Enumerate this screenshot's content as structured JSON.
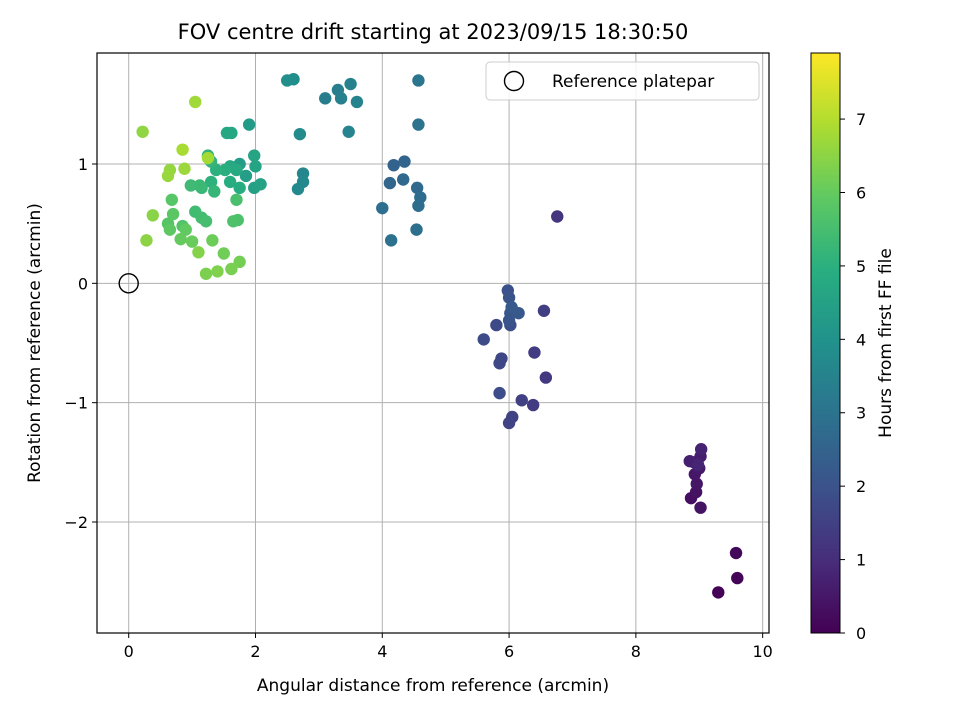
{
  "chart_data": {
    "type": "scatter",
    "title": "FOV centre drift starting at 2023/09/15 18:30:50",
    "xlabel": "Angular distance from reference (arcmin)",
    "ylabel": "Rotation from reference (arcmin)",
    "xlim": [
      -0.5,
      10.1
    ],
    "ylim": [
      -2.93,
      1.93
    ],
    "xticks": [
      0,
      2,
      4,
      6,
      8,
      10
    ],
    "yticks": [
      -2,
      -1,
      0,
      1
    ],
    "grid": true,
    "legend": {
      "placement": "top-right",
      "entries": [
        "Reference platepar"
      ]
    },
    "reference_point": {
      "label": "Reference platepar",
      "x": 0,
      "y": 0
    },
    "colorbar": {
      "label": "Hours from first FF file",
      "range": [
        0,
        7.9
      ],
      "ticks": [
        0,
        1,
        2,
        3,
        4,
        5,
        6,
        7
      ],
      "colormap": "viridis"
    },
    "points": [
      [
        9.3,
        -2.59,
        0.05
      ],
      [
        9.6,
        -2.47,
        0.1
      ],
      [
        9.58,
        -2.26,
        0.15
      ],
      [
        8.87,
        -1.8,
        0.3
      ],
      [
        8.95,
        -1.75,
        0.35
      ],
      [
        9.02,
        -1.88,
        0.4
      ],
      [
        8.96,
        -1.68,
        0.45
      ],
      [
        8.93,
        -1.6,
        0.5
      ],
      [
        9.0,
        -1.55,
        0.55
      ],
      [
        9.02,
        -1.45,
        0.6
      ],
      [
        8.92,
        -1.5,
        0.65
      ],
      [
        8.85,
        -1.49,
        0.7
      ],
      [
        9.03,
        -1.39,
        0.75
      ],
      [
        8.98,
        -1.52,
        0.8
      ],
      [
        6.76,
        0.56,
        1.2
      ],
      [
        6.58,
        -0.79,
        1.3
      ],
      [
        6.38,
        -1.02,
        1.35
      ],
      [
        6.4,
        -0.58,
        1.4
      ],
      [
        6.55,
        -0.23,
        1.45
      ],
      [
        6.2,
        -0.98,
        1.5
      ],
      [
        6.05,
        -1.12,
        1.55
      ],
      [
        6.0,
        -1.17,
        1.6
      ],
      [
        5.88,
        -0.63,
        1.65
      ],
      [
        5.85,
        -0.67,
        1.7
      ],
      [
        5.8,
        -0.35,
        1.75
      ],
      [
        5.6,
        -0.47,
        1.8
      ],
      [
        5.85,
        -0.92,
        1.85
      ],
      [
        6.02,
        -0.35,
        1.9
      ],
      [
        5.98,
        -0.06,
        1.95
      ],
      [
        6.0,
        -0.12,
        2.0
      ],
      [
        6.0,
        -0.31,
        2.05
      ],
      [
        6.02,
        -0.25,
        2.1
      ],
      [
        6.15,
        -0.25,
        2.15
      ],
      [
        6.04,
        -0.2,
        2.2
      ],
      [
        4.18,
        0.99,
        2.5
      ],
      [
        4.35,
        1.02,
        2.55
      ],
      [
        4.12,
        0.84,
        2.6
      ],
      [
        4.33,
        0.87,
        2.65
      ],
      [
        4.55,
        0.8,
        2.7
      ],
      [
        4.6,
        0.72,
        2.75
      ],
      [
        4.57,
        0.65,
        2.8
      ],
      [
        4.0,
        0.63,
        2.85
      ],
      [
        4.54,
        0.45,
        2.9
      ],
      [
        4.14,
        0.36,
        2.95
      ],
      [
        4.57,
        1.33,
        3.0
      ],
      [
        4.57,
        1.7,
        3.05
      ],
      [
        3.1,
        1.55,
        3.3
      ],
      [
        3.3,
        1.62,
        3.35
      ],
      [
        3.35,
        1.55,
        3.4
      ],
      [
        3.5,
        1.67,
        3.45
      ],
      [
        3.6,
        1.52,
        3.5
      ],
      [
        3.47,
        1.27,
        3.55
      ],
      [
        2.75,
        0.92,
        3.6
      ],
      [
        2.75,
        0.85,
        3.65
      ],
      [
        2.67,
        0.79,
        3.7
      ],
      [
        2.7,
        1.25,
        3.75
      ],
      [
        2.6,
        1.71,
        3.85
      ],
      [
        2.5,
        1.7,
        3.9
      ],
      [
        1.9,
        1.33,
        4.3
      ],
      [
        1.75,
        1.0,
        4.35
      ],
      [
        1.85,
        0.9,
        4.4
      ],
      [
        1.98,
        0.8,
        4.45
      ],
      [
        2.08,
        0.83,
        4.5
      ],
      [
        2.0,
        0.98,
        4.55
      ],
      [
        1.98,
        1.07,
        4.6
      ],
      [
        1.62,
        1.26,
        4.65
      ],
      [
        1.55,
        1.26,
        4.7
      ],
      [
        1.6,
        0.98,
        4.75
      ],
      [
        1.7,
        0.95,
        4.8
      ],
      [
        1.75,
        0.8,
        4.85
      ],
      [
        1.6,
        0.85,
        4.9
      ],
      [
        1.52,
        0.95,
        4.95
      ],
      [
        1.38,
        0.95,
        5.0
      ],
      [
        1.3,
        0.85,
        5.05
      ],
      [
        1.25,
        1.07,
        5.1
      ],
      [
        1.3,
        1.02,
        5.15
      ],
      [
        1.35,
        0.77,
        5.2
      ],
      [
        1.15,
        0.8,
        5.25
      ],
      [
        1.12,
        0.82,
        5.3
      ],
      [
        0.98,
        0.82,
        5.35
      ],
      [
        1.05,
        0.6,
        5.4
      ],
      [
        1.15,
        0.55,
        5.45
      ],
      [
        1.22,
        0.52,
        5.5
      ],
      [
        1.7,
        0.7,
        5.55
      ],
      [
        1.72,
        0.53,
        5.6
      ],
      [
        1.65,
        0.52,
        5.65
      ],
      [
        0.85,
        0.48,
        5.7
      ],
      [
        0.62,
        0.5,
        5.75
      ],
      [
        0.68,
        0.7,
        5.8
      ],
      [
        0.7,
        0.58,
        5.85
      ],
      [
        0.65,
        0.45,
        5.9
      ],
      [
        0.9,
        0.45,
        5.95
      ],
      [
        0.82,
        0.37,
        6.0
      ],
      [
        1.0,
        0.35,
        6.05
      ],
      [
        1.32,
        0.36,
        6.1
      ],
      [
        1.5,
        0.25,
        6.15
      ],
      [
        1.75,
        0.18,
        6.2
      ],
      [
        1.62,
        0.12,
        6.25
      ],
      [
        1.22,
        0.08,
        6.3
      ],
      [
        1.4,
        0.1,
        6.35
      ],
      [
        1.1,
        0.26,
        6.4
      ],
      [
        0.38,
        0.57,
        6.45
      ],
      [
        0.28,
        0.36,
        6.5
      ],
      [
        0.22,
        1.27,
        6.55
      ],
      [
        0.65,
        0.95,
        6.6
      ],
      [
        0.62,
        0.9,
        6.65
      ],
      [
        0.88,
        0.96,
        6.7
      ],
      [
        1.05,
        1.52,
        6.75
      ],
      [
        1.25,
        1.05,
        6.8
      ],
      [
        0.85,
        1.12,
        6.85
      ]
    ]
  }
}
